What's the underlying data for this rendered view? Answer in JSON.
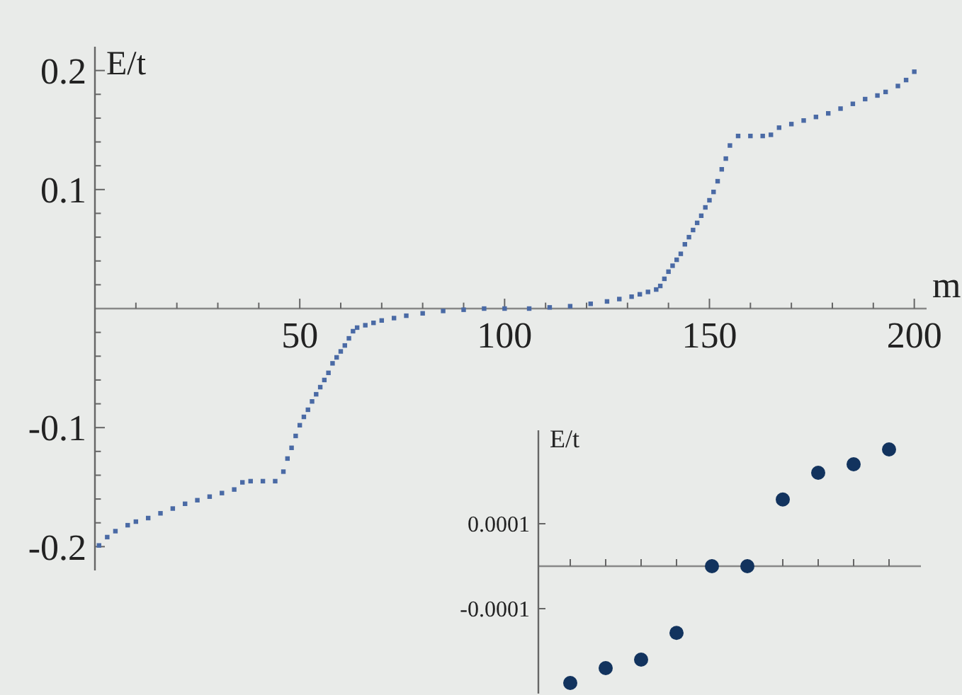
{
  "chart_data": [
    {
      "type": "scatter",
      "xlabel": "m",
      "ylabel": "E/t",
      "marker": "square",
      "grid": false,
      "xlim": [
        0,
        203
      ],
      "ylim": [
        -0.22,
        0.22
      ],
      "xticks": [
        {
          "value": 10,
          "label": null
        },
        {
          "value": 20,
          "label": null
        },
        {
          "value": 30,
          "label": null
        },
        {
          "value": 40,
          "label": null
        },
        50,
        {
          "value": 60,
          "label": null
        },
        {
          "value": 70,
          "label": null
        },
        {
          "value": 80,
          "label": null
        },
        {
          "value": 90,
          "label": null
        },
        100,
        {
          "value": 110,
          "label": null
        },
        {
          "value": 120,
          "label": null
        },
        {
          "value": 130,
          "label": null
        },
        {
          "value": 140,
          "label": null
        },
        150,
        {
          "value": 160,
          "label": null
        },
        {
          "value": 170,
          "label": null
        },
        {
          "value": 180,
          "label": null
        },
        {
          "value": 190,
          "label": null
        },
        200
      ],
      "yticks": [
        -0.2,
        {
          "value": -0.18,
          "label": null
        },
        {
          "value": -0.16,
          "label": null
        },
        {
          "value": -0.14,
          "label": null
        },
        {
          "value": -0.12,
          "label": null
        },
        -0.1,
        {
          "value": -0.08,
          "label": null
        },
        {
          "value": -0.06,
          "label": null
        },
        {
          "value": -0.04,
          "label": null
        },
        {
          "value": -0.02,
          "label": null
        },
        {
          "value": 0.02,
          "label": null
        },
        {
          "value": 0.04,
          "label": null
        },
        {
          "value": 0.06,
          "label": null
        },
        {
          "value": 0.08,
          "label": null
        },
        0.1,
        {
          "value": 0.12,
          "label": null
        },
        {
          "value": 0.14,
          "label": null
        },
        {
          "value": 0.16,
          "label": null
        },
        {
          "value": 0.18,
          "label": null
        },
        0.2
      ],
      "series": [
        {
          "color": "#4a6aa5",
          "x": [
            1,
            3,
            5,
            8,
            10,
            13,
            16,
            19,
            22,
            25,
            28,
            31,
            34,
            36,
            38,
            41,
            44,
            46,
            47,
            48,
            49,
            50,
            51,
            52,
            53,
            54,
            55,
            56,
            57,
            58,
            59,
            60,
            61,
            62,
            63,
            64,
            66,
            68,
            70,
            73,
            76,
            80,
            85,
            90,
            95,
            100,
            106,
            111,
            116,
            121,
            125,
            128,
            131,
            133,
            135,
            137,
            138,
            139,
            140,
            141,
            142,
            143,
            144,
            145,
            146,
            147,
            148,
            149,
            150,
            151,
            152,
            153,
            154,
            155,
            157,
            160,
            163,
            165,
            167,
            170,
            173,
            176,
            179,
            182,
            185,
            188,
            191,
            193,
            196,
            198,
            200
          ],
          "values": [
            -0.199,
            -0.192,
            -0.187,
            -0.182,
            -0.179,
            -0.176,
            -0.172,
            -0.168,
            -0.164,
            -0.161,
            -0.158,
            -0.155,
            -0.152,
            -0.146,
            -0.145,
            -0.145,
            -0.145,
            -0.137,
            -0.126,
            -0.117,
            -0.107,
            -0.098,
            -0.091,
            -0.085,
            -0.078,
            -0.072,
            -0.066,
            -0.06,
            -0.054,
            -0.046,
            -0.041,
            -0.036,
            -0.031,
            -0.025,
            -0.019,
            -0.016,
            -0.014,
            -0.012,
            -0.01,
            -0.008,
            -0.006,
            -0.004,
            -0.002,
            -0.001,
            0,
            0,
            0,
            0.001,
            0.002,
            0.004,
            0.006,
            0.008,
            0.01,
            0.012,
            0.014,
            0.016,
            0.019,
            0.025,
            0.031,
            0.036,
            0.041,
            0.046,
            0.054,
            0.06,
            0.066,
            0.072,
            0.078,
            0.085,
            0.091,
            0.098,
            0.107,
            0.117,
            0.126,
            0.137,
            0.145,
            0.145,
            0.145,
            0.146,
            0.152,
            0.155,
            0.158,
            0.161,
            0.164,
            0.168,
            0.172,
            0.176,
            0.179,
            0.182,
            0.187,
            0.192,
            0.199
          ]
        }
      ]
    },
    {
      "type": "scatter",
      "ylabel": "E/t",
      "marker": "circle",
      "grid": false,
      "categories": [
        null,
        null,
        null,
        null,
        null,
        null,
        null,
        null,
        null,
        null
      ],
      "ylim": [
        -0.0003,
        0.00032
      ],
      "yticks": [
        -0.0001,
        0.0001
      ],
      "series": [
        {
          "color": "#12335e",
          "values": [
            -0.000275,
            -0.00024,
            -0.00022,
            -0.000157,
            0,
            0,
            0.000157,
            0.00022,
            0.00024,
            0.000275
          ]
        }
      ]
    }
  ]
}
